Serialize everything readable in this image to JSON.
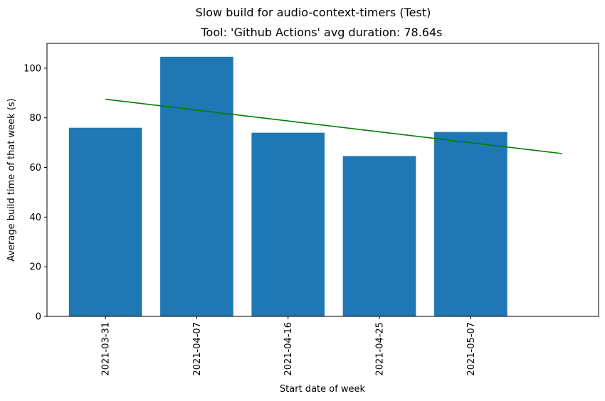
{
  "chart_data": {
    "type": "bar",
    "suptitle": "Slow build for audio-context-timers (Test)",
    "title": "Tool: 'Github Actions' avg duration: 78.64s",
    "xlabel": "Start date of week",
    "ylabel": "Average build time of that week (s)",
    "categories": [
      "2021-03-31",
      "2021-04-07",
      "2021-04-16",
      "2021-04-25",
      "2021-05-07"
    ],
    "values": [
      76.0,
      104.6,
      74.0,
      64.6,
      74.3
    ],
    "ylim": [
      0,
      110
    ],
    "yticks": [
      0,
      20,
      40,
      60,
      80,
      100
    ],
    "bar_color": "#1f77b4",
    "trend": {
      "color": "#008000",
      "start": {
        "x": "2021-03-31",
        "y": 87.5
      },
      "end": {
        "y": 65.6
      }
    },
    "grid": false
  }
}
